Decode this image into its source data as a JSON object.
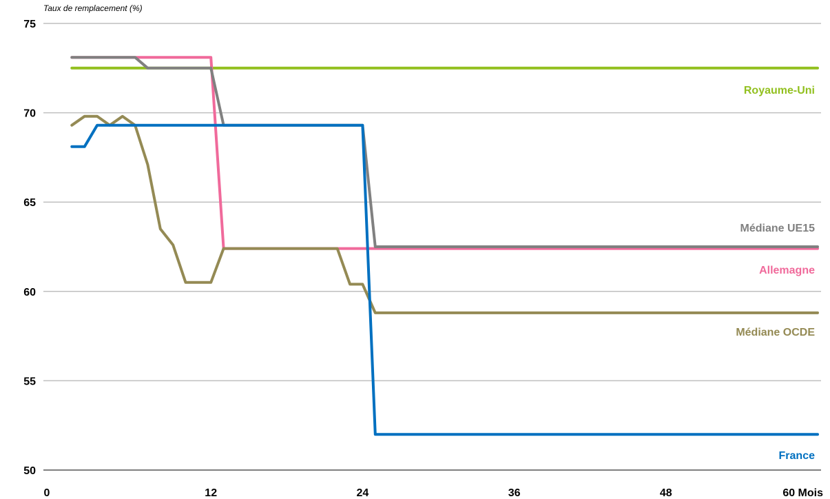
{
  "chart_data": {
    "type": "line",
    "title": "",
    "ylabel": "Taux de remplacement (%)",
    "xlabel": "",
    "ylim": [
      50,
      75
    ],
    "xlim": [
      0,
      60
    ],
    "yticks": [
      50,
      55,
      60,
      65,
      70,
      75
    ],
    "xticks": [
      {
        "value": 0,
        "label": "0"
      },
      {
        "value": 12,
        "label": "12"
      },
      {
        "value": 24,
        "label": "24"
      },
      {
        "value": 36,
        "label": "36"
      },
      {
        "value": 48,
        "label": "48"
      },
      {
        "value": 60,
        "label": "60 Mois"
      }
    ],
    "grid": true,
    "series": [
      {
        "name": "Royaume-Uni",
        "color": "#92c01f",
        "points": [
          [
            1,
            72.5
          ],
          [
            60,
            72.5
          ]
        ]
      },
      {
        "name": "Allemagne",
        "color": "#f06a9b",
        "points": [
          [
            1,
            73.1
          ],
          [
            12,
            73.1
          ],
          [
            13,
            62.4
          ],
          [
            60,
            62.4
          ]
        ]
      },
      {
        "name": "Médiane UE15",
        "color": "#808080",
        "points": [
          [
            1,
            73.1
          ],
          [
            6,
            73.1
          ],
          [
            7,
            72.5
          ],
          [
            12,
            72.5
          ],
          [
            13,
            69.3
          ],
          [
            24,
            69.3
          ],
          [
            25,
            62.5
          ],
          [
            60,
            62.5
          ]
        ]
      },
      {
        "name": "Médiane OCDE",
        "color": "#948a54",
        "points": [
          [
            1,
            69.3
          ],
          [
            2,
            69.8
          ],
          [
            3,
            69.8
          ],
          [
            4,
            69.3
          ],
          [
            5,
            69.8
          ],
          [
            6,
            69.3
          ],
          [
            7,
            67.1
          ],
          [
            8,
            63.5
          ],
          [
            9,
            62.6
          ],
          [
            10,
            60.5
          ],
          [
            12,
            60.5
          ],
          [
            13,
            62.4
          ],
          [
            22,
            62.4
          ],
          [
            23,
            60.4
          ],
          [
            24,
            60.4
          ],
          [
            25,
            58.8
          ],
          [
            60,
            58.8
          ]
        ]
      },
      {
        "name": "France",
        "color": "#0070c0",
        "points": [
          [
            1,
            68.1
          ],
          [
            2,
            68.1
          ],
          [
            3,
            69.3
          ],
          [
            24,
            69.3
          ],
          [
            25,
            52
          ],
          [
            60,
            52
          ]
        ]
      }
    ]
  }
}
